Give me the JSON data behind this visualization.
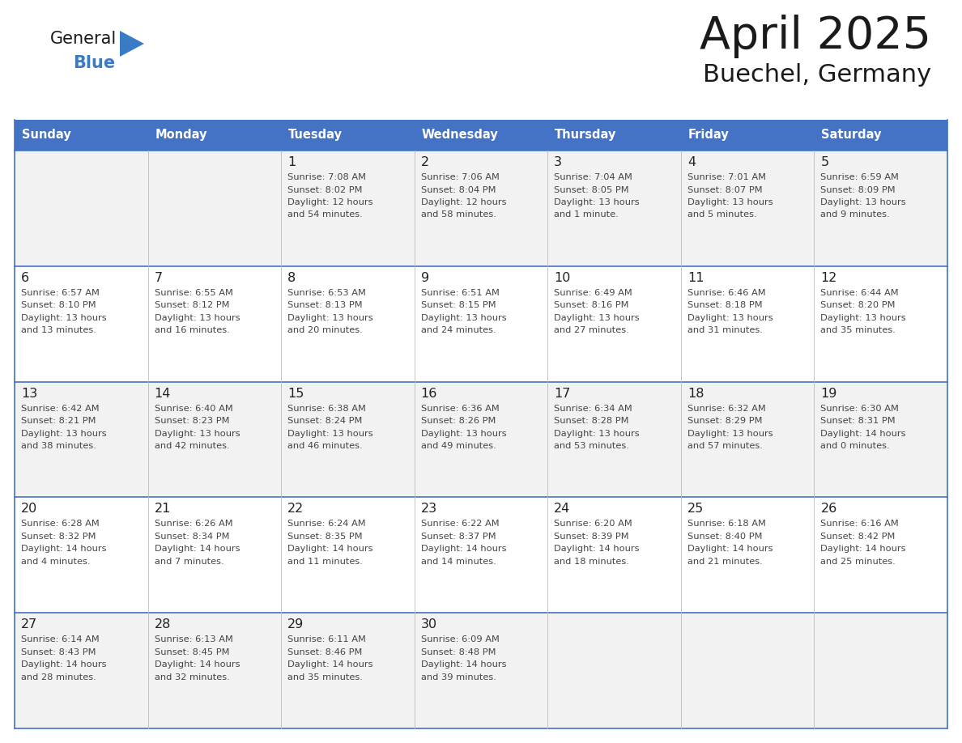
{
  "title": "April 2025",
  "subtitle": "Buechel, Germany",
  "header_bg_color": "#4472C4",
  "header_text_color": "#FFFFFF",
  "day_names": [
    "Sunday",
    "Monday",
    "Tuesday",
    "Wednesday",
    "Thursday",
    "Friday",
    "Saturday"
  ],
  "row_bg_colors": [
    "#F2F2F2",
    "#FFFFFF",
    "#F2F2F2",
    "#FFFFFF",
    "#F2F2F2"
  ],
  "cell_border_color": "#4472C4",
  "title_color": "#1a1a1a",
  "subtitle_color": "#1a1a1a",
  "date_text_color": "#222222",
  "info_text_color": "#444444",
  "logo_general_color": "#1a1a1a",
  "logo_blue_color": "#3a7bc8",
  "logo_triangle_color": "#3a7bc8",
  "calendar": [
    [
      {
        "day": "",
        "lines": []
      },
      {
        "day": "",
        "lines": []
      },
      {
        "day": "1",
        "lines": [
          "Sunrise: 7:08 AM",
          "Sunset: 8:02 PM",
          "Daylight: 12 hours",
          "and 54 minutes."
        ]
      },
      {
        "day": "2",
        "lines": [
          "Sunrise: 7:06 AM",
          "Sunset: 8:04 PM",
          "Daylight: 12 hours",
          "and 58 minutes."
        ]
      },
      {
        "day": "3",
        "lines": [
          "Sunrise: 7:04 AM",
          "Sunset: 8:05 PM",
          "Daylight: 13 hours",
          "and 1 minute."
        ]
      },
      {
        "day": "4",
        "lines": [
          "Sunrise: 7:01 AM",
          "Sunset: 8:07 PM",
          "Daylight: 13 hours",
          "and 5 minutes."
        ]
      },
      {
        "day": "5",
        "lines": [
          "Sunrise: 6:59 AM",
          "Sunset: 8:09 PM",
          "Daylight: 13 hours",
          "and 9 minutes."
        ]
      }
    ],
    [
      {
        "day": "6",
        "lines": [
          "Sunrise: 6:57 AM",
          "Sunset: 8:10 PM",
          "Daylight: 13 hours",
          "and 13 minutes."
        ]
      },
      {
        "day": "7",
        "lines": [
          "Sunrise: 6:55 AM",
          "Sunset: 8:12 PM",
          "Daylight: 13 hours",
          "and 16 minutes."
        ]
      },
      {
        "day": "8",
        "lines": [
          "Sunrise: 6:53 AM",
          "Sunset: 8:13 PM",
          "Daylight: 13 hours",
          "and 20 minutes."
        ]
      },
      {
        "day": "9",
        "lines": [
          "Sunrise: 6:51 AM",
          "Sunset: 8:15 PM",
          "Daylight: 13 hours",
          "and 24 minutes."
        ]
      },
      {
        "day": "10",
        "lines": [
          "Sunrise: 6:49 AM",
          "Sunset: 8:16 PM",
          "Daylight: 13 hours",
          "and 27 minutes."
        ]
      },
      {
        "day": "11",
        "lines": [
          "Sunrise: 6:46 AM",
          "Sunset: 8:18 PM",
          "Daylight: 13 hours",
          "and 31 minutes."
        ]
      },
      {
        "day": "12",
        "lines": [
          "Sunrise: 6:44 AM",
          "Sunset: 8:20 PM",
          "Daylight: 13 hours",
          "and 35 minutes."
        ]
      }
    ],
    [
      {
        "day": "13",
        "lines": [
          "Sunrise: 6:42 AM",
          "Sunset: 8:21 PM",
          "Daylight: 13 hours",
          "and 38 minutes."
        ]
      },
      {
        "day": "14",
        "lines": [
          "Sunrise: 6:40 AM",
          "Sunset: 8:23 PM",
          "Daylight: 13 hours",
          "and 42 minutes."
        ]
      },
      {
        "day": "15",
        "lines": [
          "Sunrise: 6:38 AM",
          "Sunset: 8:24 PM",
          "Daylight: 13 hours",
          "and 46 minutes."
        ]
      },
      {
        "day": "16",
        "lines": [
          "Sunrise: 6:36 AM",
          "Sunset: 8:26 PM",
          "Daylight: 13 hours",
          "and 49 minutes."
        ]
      },
      {
        "day": "17",
        "lines": [
          "Sunrise: 6:34 AM",
          "Sunset: 8:28 PM",
          "Daylight: 13 hours",
          "and 53 minutes."
        ]
      },
      {
        "day": "18",
        "lines": [
          "Sunrise: 6:32 AM",
          "Sunset: 8:29 PM",
          "Daylight: 13 hours",
          "and 57 minutes."
        ]
      },
      {
        "day": "19",
        "lines": [
          "Sunrise: 6:30 AM",
          "Sunset: 8:31 PM",
          "Daylight: 14 hours",
          "and 0 minutes."
        ]
      }
    ],
    [
      {
        "day": "20",
        "lines": [
          "Sunrise: 6:28 AM",
          "Sunset: 8:32 PM",
          "Daylight: 14 hours",
          "and 4 minutes."
        ]
      },
      {
        "day": "21",
        "lines": [
          "Sunrise: 6:26 AM",
          "Sunset: 8:34 PM",
          "Daylight: 14 hours",
          "and 7 minutes."
        ]
      },
      {
        "day": "22",
        "lines": [
          "Sunrise: 6:24 AM",
          "Sunset: 8:35 PM",
          "Daylight: 14 hours",
          "and 11 minutes."
        ]
      },
      {
        "day": "23",
        "lines": [
          "Sunrise: 6:22 AM",
          "Sunset: 8:37 PM",
          "Daylight: 14 hours",
          "and 14 minutes."
        ]
      },
      {
        "day": "24",
        "lines": [
          "Sunrise: 6:20 AM",
          "Sunset: 8:39 PM",
          "Daylight: 14 hours",
          "and 18 minutes."
        ]
      },
      {
        "day": "25",
        "lines": [
          "Sunrise: 6:18 AM",
          "Sunset: 8:40 PM",
          "Daylight: 14 hours",
          "and 21 minutes."
        ]
      },
      {
        "day": "26",
        "lines": [
          "Sunrise: 6:16 AM",
          "Sunset: 8:42 PM",
          "Daylight: 14 hours",
          "and 25 minutes."
        ]
      }
    ],
    [
      {
        "day": "27",
        "lines": [
          "Sunrise: 6:14 AM",
          "Sunset: 8:43 PM",
          "Daylight: 14 hours",
          "and 28 minutes."
        ]
      },
      {
        "day": "28",
        "lines": [
          "Sunrise: 6:13 AM",
          "Sunset: 8:45 PM",
          "Daylight: 14 hours",
          "and 32 minutes."
        ]
      },
      {
        "day": "29",
        "lines": [
          "Sunrise: 6:11 AM",
          "Sunset: 8:46 PM",
          "Daylight: 14 hours",
          "and 35 minutes."
        ]
      },
      {
        "day": "30",
        "lines": [
          "Sunrise: 6:09 AM",
          "Sunset: 8:48 PM",
          "Daylight: 14 hours",
          "and 39 minutes."
        ]
      },
      {
        "day": "",
        "lines": []
      },
      {
        "day": "",
        "lines": []
      },
      {
        "day": "",
        "lines": []
      }
    ]
  ]
}
